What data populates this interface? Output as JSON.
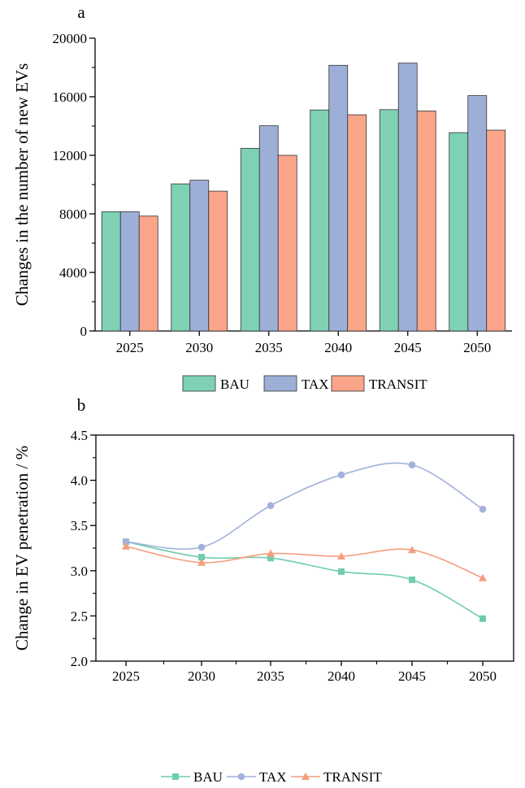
{
  "colors": {
    "BAU": "#7FD1B4",
    "TAX": "#9DAFD6",
    "TRANSIT": "#FAA589",
    "BAU_line": "#6FCDAA",
    "TAX_line": "#A2B1DB",
    "TRANSIT_line": "#F49E7E"
  },
  "chart_data": [
    {
      "panel_label": "a",
      "type": "bar",
      "ylabel": "Changes in the number of new EVs",
      "xlabel": "",
      "ylim": [
        0,
        20000
      ],
      "yticks": [
        "0",
        "4000",
        "8000",
        "12000",
        "16000",
        "20000"
      ],
      "categories": [
        "2025",
        "2030",
        "2035",
        "2040",
        "2045",
        "2050"
      ],
      "series": [
        {
          "name": "BAU",
          "values": [
            8150,
            10050,
            12480,
            15100,
            15120,
            13550
          ]
        },
        {
          "name": "TAX",
          "values": [
            8150,
            10300,
            14020,
            18150,
            18300,
            16080
          ]
        },
        {
          "name": "TRANSIT",
          "values": [
            7850,
            9550,
            12000,
            14770,
            15030,
            13720
          ]
        }
      ],
      "legend_placement": "bottom"
    },
    {
      "panel_label": "b",
      "type": "line",
      "ylabel": "Change in EV penetration / %",
      "xlabel": "",
      "ylim": [
        2.0,
        4.5
      ],
      "yticks": [
        "2.0",
        "2.5",
        "3.0",
        "3.5",
        "4.0",
        "4.5"
      ],
      "x": [
        "2025",
        "2030",
        "2035",
        "2040",
        "2045",
        "2050"
      ],
      "series": [
        {
          "name": "BAU",
          "marker": "square",
          "values": [
            3.32,
            3.15,
            3.14,
            2.99,
            2.9,
            2.47
          ]
        },
        {
          "name": "TAX",
          "marker": "circle",
          "values": [
            3.32,
            3.26,
            3.72,
            4.06,
            4.17,
            3.68
          ]
        },
        {
          "name": "TRANSIT",
          "marker": "triangle",
          "values": [
            3.27,
            3.09,
            3.19,
            3.16,
            3.23,
            2.92
          ]
        }
      ],
      "legend_placement": "bottom"
    }
  ]
}
